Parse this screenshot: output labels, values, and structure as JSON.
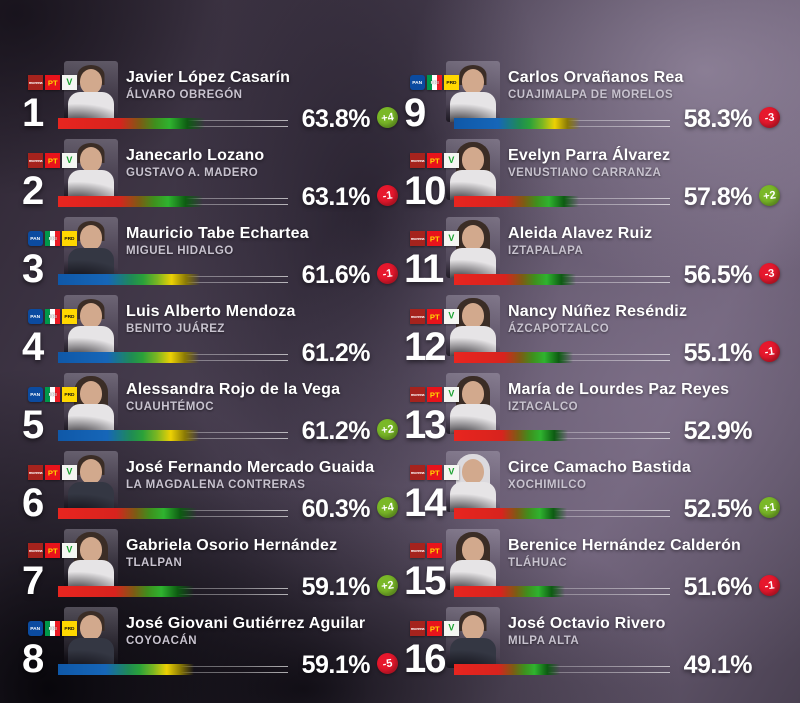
{
  "colors": {
    "bar_red_start": "#e8251f",
    "bar_green_mid": "#2fb32f",
    "bar_blue_start": "#0f58a8",
    "bar_yellow_mid": "#ecd104",
    "badge_up": "#7ab828",
    "badge_down": "#e7182d",
    "text_primary": "#ffffff",
    "text_secondary": "#c8c3cf"
  },
  "parties": {
    "morena": {
      "label": "morena",
      "color": "#a5231d"
    },
    "pt": {
      "label": "PT",
      "color": "#e8131b"
    },
    "verde": {
      "label": "V",
      "color": "#18a12e"
    },
    "pan": {
      "label": "PAN",
      "color": "#0b4ba0"
    },
    "pri": {
      "label": "PRI",
      "color": "#00984a"
    },
    "prd": {
      "label": "PRD",
      "color": "#ffd800"
    }
  },
  "chart_data": {
    "type": "bar",
    "orientation": "horizontal",
    "value_unit": "%",
    "value_range": [
      0,
      100
    ],
    "legend": "approval ranking of Mexico City borough mayors, two-column layout, ranks 1-16",
    "points": [
      {
        "rank": "1",
        "name": "Javier López Casarín",
        "municipality": "ÁLVARO OBREGÓN",
        "value": 63.8,
        "value_label": "63.8%",
        "change_label": "+4",
        "change_dir": "up",
        "coalition": [
          "morena",
          "pt",
          "verde"
        ],
        "bar_palette": "red-green",
        "photo": "man-headshot",
        "attire": "light",
        "column": "left"
      },
      {
        "rank": "2",
        "name": "Janecarlo Lozano",
        "municipality": "GUSTAVO A. MADERO",
        "value": 63.1,
        "value_label": "63.1%",
        "change_label": "-1",
        "change_dir": "down",
        "coalition": [
          "morena",
          "pt",
          "verde"
        ],
        "bar_palette": "red-green",
        "photo": "man-headshot",
        "attire": "light",
        "column": "left"
      },
      {
        "rank": "3",
        "name": "Mauricio Tabe Echartea",
        "municipality": "MIGUEL HIDALGO",
        "value": 61.6,
        "value_label": "61.6%",
        "change_label": "-1",
        "change_dir": "down",
        "coalition": [
          "pan",
          "pri",
          "prd"
        ],
        "bar_palette": "blue-green",
        "photo": "man-headshot",
        "attire": "dark",
        "column": "left"
      },
      {
        "rank": "4",
        "name": "Luis Alberto Mendoza",
        "municipality": "BENITO JUÁREZ",
        "value": 61.2,
        "value_label": "61.2%",
        "change_label": "",
        "change_dir": "none",
        "coalition": [
          "pan",
          "pri",
          "prd"
        ],
        "bar_palette": "blue-green",
        "photo": "man-headshot",
        "attire": "light",
        "column": "left"
      },
      {
        "rank": "5",
        "name": "Alessandra Rojo de la Vega",
        "municipality": "CUAUHTÉMOC",
        "value": 61.2,
        "value_label": "61.2%",
        "change_label": "+2",
        "change_dir": "up",
        "coalition": [
          "pan",
          "pri",
          "prd"
        ],
        "bar_palette": "blue-green",
        "photo": "woman-headshot",
        "attire": "light",
        "column": "left"
      },
      {
        "rank": "6",
        "name": "José Fernando Mercado Guaida",
        "municipality": "LA MAGDALENA CONTRERAS",
        "value": 60.3,
        "value_label": "60.3%",
        "change_label": "+4",
        "change_dir": "up",
        "coalition": [
          "morena",
          "pt",
          "verde"
        ],
        "bar_palette": "red-green",
        "photo": "man-headshot",
        "attire": "dark",
        "column": "left"
      },
      {
        "rank": "7",
        "name": "Gabriela Osorio Hernández",
        "municipality": "TLALPAN",
        "value": 59.1,
        "value_label": "59.1%",
        "change_label": "+2",
        "change_dir": "up",
        "coalition": [
          "morena",
          "pt",
          "verde"
        ],
        "bar_palette": "red-green",
        "photo": "woman-headshot",
        "attire": "light",
        "column": "left"
      },
      {
        "rank": "8",
        "name": "José Giovani Gutiérrez Aguilar",
        "municipality": "COYOACÁN",
        "value": 59.1,
        "value_label": "59.1%",
        "change_label": "-5",
        "change_dir": "down",
        "coalition": [
          "pan",
          "pri",
          "prd"
        ],
        "bar_palette": "blue-green",
        "photo": "man-headshot",
        "attire": "dark",
        "column": "left"
      },
      {
        "rank": "9",
        "name": "Carlos Orvañanos Rea",
        "municipality": "CUAJIMALPA DE MORELOS",
        "value": 58.3,
        "value_label": "58.3%",
        "change_label": "-3",
        "change_dir": "down",
        "coalition": [
          "pan",
          "pri",
          "prd"
        ],
        "bar_palette": "blue-green",
        "photo": "man-headshot",
        "attire": "light",
        "column": "right"
      },
      {
        "rank": "10",
        "name": "Evelyn Parra Álvarez",
        "municipality": "VENUSTIANO CARRANZA",
        "value": 57.8,
        "value_label": "57.8%",
        "change_label": "+2",
        "change_dir": "up",
        "coalition": [
          "morena",
          "pt",
          "verde"
        ],
        "bar_palette": "red-green",
        "photo": "woman-headshot",
        "attire": "light",
        "column": "right"
      },
      {
        "rank": "11",
        "name": "Aleida Alavez Ruiz",
        "municipality": "IZTAPALAPA",
        "value": 56.5,
        "value_label": "56.5%",
        "change_label": "-3",
        "change_dir": "down",
        "coalition": [
          "morena",
          "pt",
          "verde"
        ],
        "bar_palette": "red-green",
        "photo": "woman-headshot",
        "attire": "light",
        "column": "right"
      },
      {
        "rank": "12",
        "name": "Nancy Núñez Reséndiz",
        "municipality": "ÁZCAPOTZALCO",
        "value": 55.1,
        "value_label": "55.1%",
        "change_label": "-1",
        "change_dir": "down",
        "coalition": [
          "morena",
          "pt",
          "verde"
        ],
        "bar_palette": "red-green",
        "photo": "woman-headshot",
        "attire": "light",
        "column": "right"
      },
      {
        "rank": "13",
        "name": "María de Lourdes Paz Reyes",
        "municipality": "IZTACALCO",
        "value": 52.9,
        "value_label": "52.9%",
        "change_label": "",
        "change_dir": "none",
        "coalition": [
          "morena",
          "pt",
          "verde"
        ],
        "bar_palette": "red-green",
        "photo": "woman-headshot",
        "attire": "light",
        "column": "right"
      },
      {
        "rank": "14",
        "name": "Circe Camacho Bastida",
        "municipality": "XOCHIMILCO",
        "value": 52.5,
        "value_label": "52.5%",
        "change_label": "+1",
        "change_dir": "up",
        "coalition": [
          "morena",
          "pt",
          "verde"
        ],
        "bar_palette": "red-green",
        "photo": "woman-headshot",
        "attire": "light",
        "hair": "gray",
        "column": "right"
      },
      {
        "rank": "15",
        "name": "Berenice Hernández Calderón",
        "municipality": "TLÁHUAC",
        "value": 51.6,
        "value_label": "51.6%",
        "change_label": "-1",
        "change_dir": "down",
        "coalition": [
          "morena",
          "pt"
        ],
        "bar_palette": "red-green",
        "photo": "woman-headshot",
        "attire": "light",
        "column": "right"
      },
      {
        "rank": "16",
        "name": "José Octavio Rivero",
        "municipality": "MILPA ALTA",
        "value": 49.1,
        "value_label": "49.1%",
        "change_label": "",
        "change_dir": "none",
        "coalition": [
          "morena",
          "pt",
          "verde"
        ],
        "bar_palette": "red-green",
        "photo": "man-headshot",
        "attire": "dark",
        "column": "right"
      }
    ]
  }
}
